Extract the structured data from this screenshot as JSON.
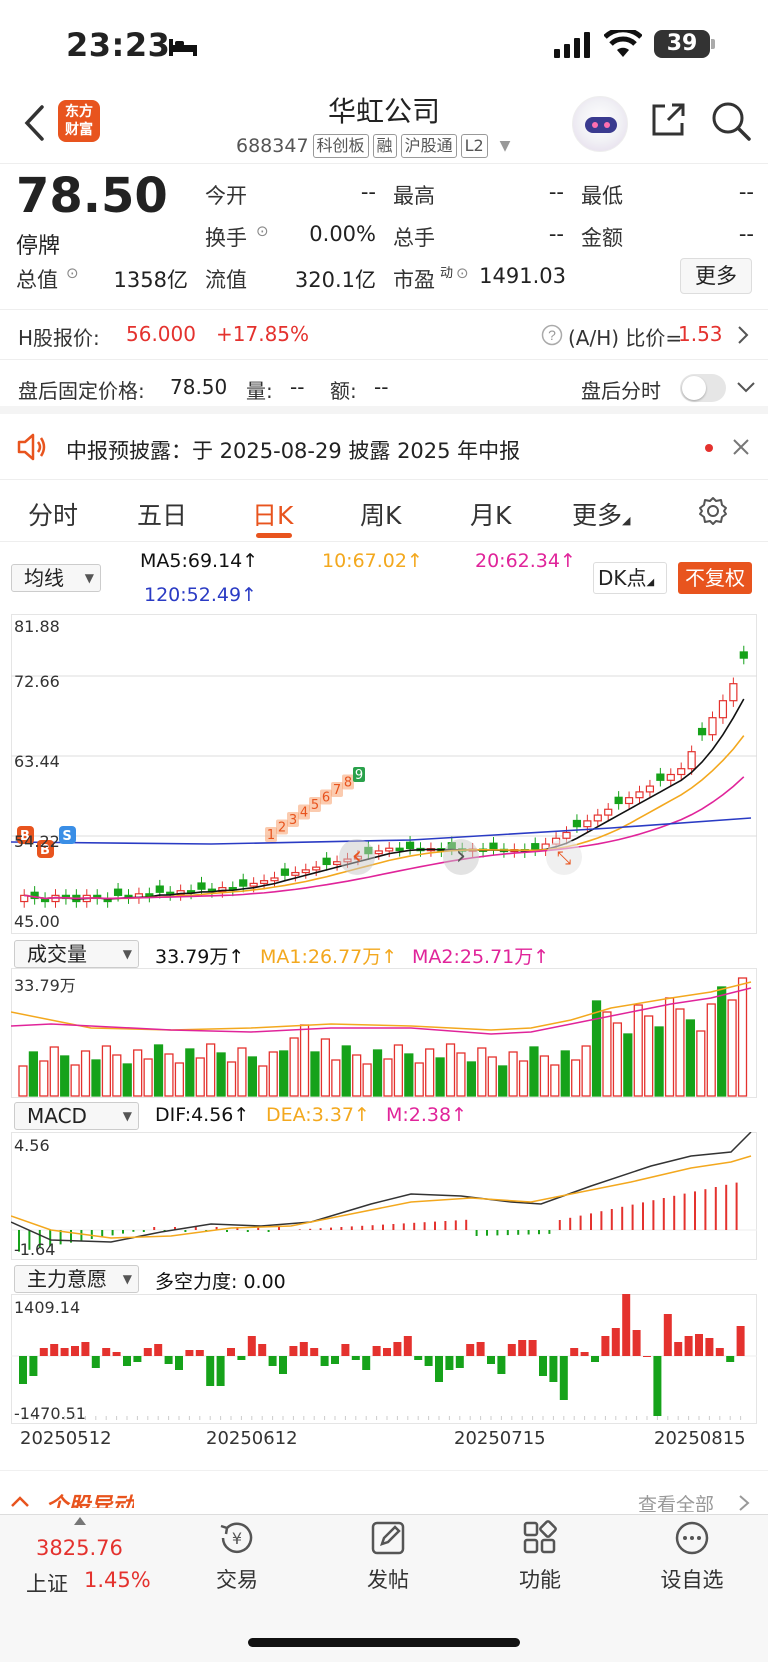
{
  "status_bar": {
    "time": "23:23",
    "battery": "39"
  },
  "header": {
    "back_icon": "chevron-left-icon",
    "app_logo": "东方\n财富",
    "stock_name": "华虹公司",
    "code": "688347",
    "tags": [
      "科创板",
      "融",
      "沪股通",
      "L2"
    ]
  },
  "quote": {
    "price": "78.50",
    "status": "停牌",
    "fields": [
      {
        "label": "今开",
        "value": "--"
      },
      {
        "label": "最高",
        "value": "--"
      },
      {
        "label": "最低",
        "value": "--"
      },
      {
        "label": "换手",
        "value": "0.00%"
      },
      {
        "label": "总手",
        "value": "--"
      },
      {
        "label": "金额",
        "value": "--"
      },
      {
        "label": "总值",
        "value": "1358亿"
      },
      {
        "label": "流值",
        "value": "320.1亿"
      },
      {
        "label": "市盈",
        "sup": "动",
        "value": "1491.03"
      }
    ],
    "more_label": "更多"
  },
  "h_share": {
    "label": "H股报价:",
    "price": "56.000",
    "change": "+17.85%",
    "ratio_label": "(A/H) 比价=",
    "ratio": "1.53"
  },
  "post_market": {
    "label": "盘后固定价格:",
    "price": "78.50",
    "vol_label": "量:",
    "vol": "--",
    "amt_label": "额:",
    "amt": "--",
    "timeshare_label": "盘后分时"
  },
  "notice": {
    "text": "中报预披露：于 2025-08-29 披露 2025 年中报"
  },
  "tabs": [
    "分时",
    "五日",
    "日K",
    "周K",
    "月K",
    "更多"
  ],
  "active_tab": "日K",
  "ma_bar": {
    "select": "均线",
    "ma5": "MA5:69.14↑",
    "ma10": "10:67.02↑",
    "ma20": "20:62.34↑",
    "ma120": "120:52.49↑",
    "dk_label": "DK点",
    "adjust_label": "不复权"
  },
  "kline_axis": {
    "y_labels": [
      "81.88",
      "72.66",
      "63.44",
      "54.22",
      "45.00"
    ]
  },
  "volume": {
    "select": "成交量",
    "vol": "33.79万↑",
    "ma1": "MA1:26.77万↑",
    "ma2": "MA2:25.71万↑",
    "top": "33.79万"
  },
  "macd": {
    "select": "MACD",
    "dif": "DIF:4.56↑",
    "dea": "DEA:3.37↑",
    "m": "M:2.38↑",
    "top": "4.56",
    "bottom": "-1.64"
  },
  "mainforce": {
    "select": "主力意愿",
    "label": "多空力度: 0.00",
    "top": "1409.14",
    "bottom": "-1470.51"
  },
  "dates": [
    "20250512",
    "20250612",
    "20250715",
    "20250815"
  ],
  "movers": {
    "title": "个股异动",
    "view_all": "查看全部"
  },
  "bottom_bar": {
    "index_value": "3825.76",
    "index_name": "上证",
    "index_change": "1.45%",
    "items": [
      "交易",
      "发帖",
      "功能",
      "设自选"
    ]
  },
  "colors": {
    "up": "#e4322e",
    "down": "#16a21a",
    "accent": "#e8541e",
    "ma5": "#111111",
    "ma10": "#f3a81e",
    "ma20": "#e0249a",
    "ma120": "#2a3bc4"
  }
}
